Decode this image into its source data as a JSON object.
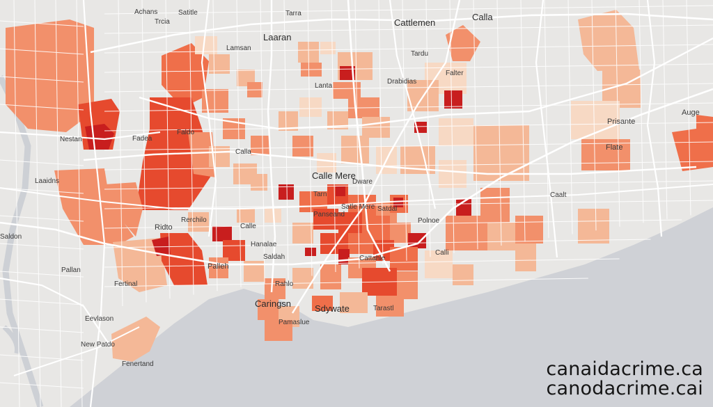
{
  "map": {
    "land_color": "#e8e7e5",
    "water_color": "#cfd1d6",
    "road_color": "#ffffff",
    "choropleth_scale": [
      "#f7d9c4",
      "#f4b897",
      "#f2906b",
      "#ef6f4a",
      "#e64a2e",
      "#c81e1e"
    ],
    "labels": [
      {
        "text": "Achans"
      },
      {
        "text": "Satitle"
      },
      {
        "text": "Trcia"
      },
      {
        "text": "Tarra"
      },
      {
        "text": "Cattlemen"
      },
      {
        "text": "Calla"
      },
      {
        "text": "Laaran"
      },
      {
        "text": "Lamsan"
      },
      {
        "text": "Tardu"
      },
      {
        "text": "Falter"
      },
      {
        "text": "Fadea"
      },
      {
        "text": "Lanta"
      },
      {
        "text": "Drabidias"
      },
      {
        "text": "Prisante"
      },
      {
        "text": "Auge"
      },
      {
        "text": "Flate"
      },
      {
        "text": "Nestan"
      },
      {
        "text": "Faldo"
      },
      {
        "text": "Laaidns"
      },
      {
        "text": "Calla"
      },
      {
        "text": "Calle Mere"
      },
      {
        "text": "Dware"
      },
      {
        "text": "Ridto"
      },
      {
        "text": "Rerchilo"
      },
      {
        "text": "Calle"
      },
      {
        "text": "Caalt"
      },
      {
        "text": "Saldon"
      },
      {
        "text": "Pallan"
      },
      {
        "text": "Fertinal"
      },
      {
        "text": "Eevlason"
      },
      {
        "text": "New Patdo"
      },
      {
        "text": "Fenertand"
      },
      {
        "text": "Hanalae"
      },
      {
        "text": "Palleh"
      },
      {
        "text": "Rahlo"
      },
      {
        "text": "Panseand"
      },
      {
        "text": "Caringsn"
      },
      {
        "text": "Sdywate"
      },
      {
        "text": "Pamaslue"
      },
      {
        "text": "Polnoe"
      },
      {
        "text": "Tarastl"
      },
      {
        "text": "Satdal"
      },
      {
        "text": "Calli"
      },
      {
        "text": "Tarn"
      },
      {
        "text": "Saldah"
      },
      {
        "text": "Satle Mere"
      },
      {
        "text": "Cattahle"
      }
    ]
  },
  "watermark": {
    "line1": "canaidacrime.ca",
    "line2": "canodacrime.cai"
  }
}
